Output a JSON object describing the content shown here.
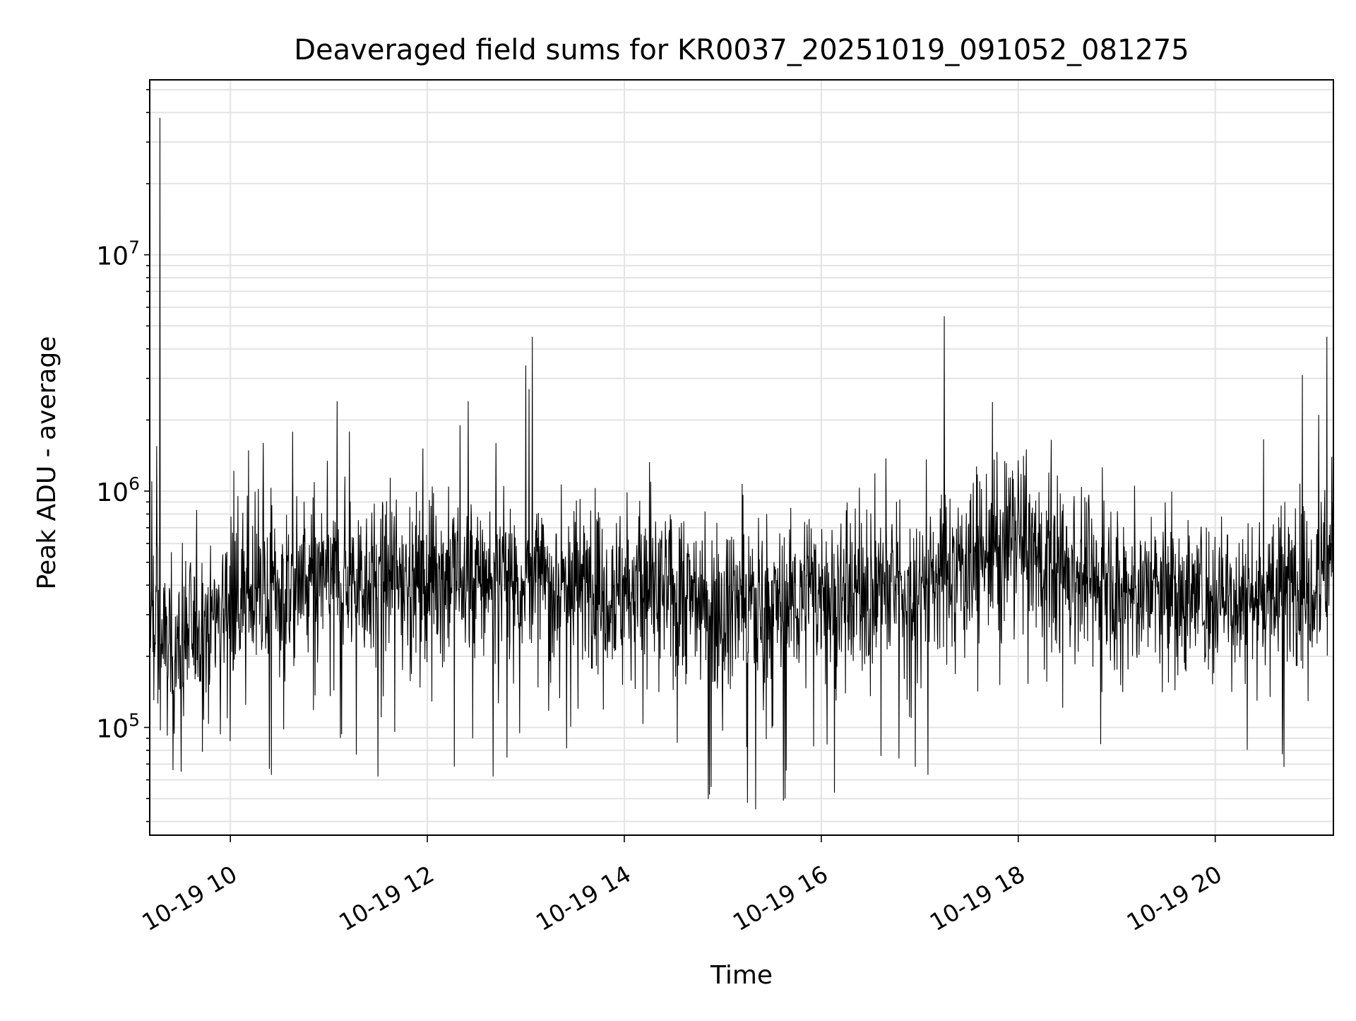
{
  "chart_data": {
    "type": "line",
    "title": "Deaveraged field sums for KR0037_20251019_091052_081275",
    "xlabel": "Time",
    "ylabel": "Peak ADU - average",
    "y_scale": "log",
    "ylim": [
      35000,
      55000000
    ],
    "xlim": [
      "2025-10-19 09:10:52",
      "2025-10-19 21:12:00"
    ],
    "grid": true,
    "legend": "none",
    "x_ticks": [
      {
        "value": "2025-10-19 10:00",
        "label": "10-19 10"
      },
      {
        "value": "2025-10-19 12:00",
        "label": "10-19 12"
      },
      {
        "value": "2025-10-19 14:00",
        "label": "10-19 14"
      },
      {
        "value": "2025-10-19 16:00",
        "label": "10-19 16"
      },
      {
        "value": "2025-10-19 18:00",
        "label": "10-19 18"
      },
      {
        "value": "2025-10-19 20:00",
        "label": "10-19 20"
      }
    ],
    "y_ticks": [
      {
        "value": 100000,
        "base": "10",
        "exp": "5"
      },
      {
        "value": 1000000,
        "base": "10",
        "exp": "6"
      },
      {
        "value": 10000000,
        "base": "10",
        "exp": "7"
      }
    ],
    "series": [
      {
        "color": "#000000",
        "baseline_points": [
          [
            "2025-10-19 09:10:52",
            250000
          ],
          [
            "2025-10-19 09:20",
            220000
          ],
          [
            "2025-10-19 09:30",
            230000
          ],
          [
            "2025-10-19 09:45",
            280000
          ],
          [
            "2025-10-19 10:00",
            360000
          ],
          [
            "2025-10-19 10:30",
            380000
          ],
          [
            "2025-10-19 11:00",
            430000
          ],
          [
            "2025-10-19 12:00",
            430000
          ],
          [
            "2025-10-19 13:00",
            420000
          ],
          [
            "2025-10-19 14:00",
            390000
          ],
          [
            "2025-10-19 15:00",
            340000
          ],
          [
            "2025-10-19 15:30",
            330000
          ],
          [
            "2025-10-19 16:00",
            370000
          ],
          [
            "2025-10-19 17:00",
            400000
          ],
          [
            "2025-10-19 17:30",
            520000
          ],
          [
            "2025-10-19 18:00",
            580000
          ],
          [
            "2025-10-19 18:30",
            460000
          ],
          [
            "2025-10-19 19:00",
            380000
          ],
          [
            "2025-10-19 20:00",
            360000
          ],
          [
            "2025-10-19 20:30",
            360000
          ],
          [
            "2025-10-19 21:00",
            440000
          ],
          [
            "2025-10-19 21:12:00",
            560000
          ]
        ],
        "spikes": [
          [
            "2025-10-19 09:12",
            1100000
          ],
          [
            "2025-10-19 09:15",
            1550000
          ],
          [
            "2025-10-19 09:17",
            38000000
          ],
          [
            "2025-10-19 10:20",
            1600000
          ],
          [
            "2025-10-19 11:05",
            2400000
          ],
          [
            "2025-10-19 12:20",
            1900000
          ],
          [
            "2025-10-19 12:25",
            2400000
          ],
          [
            "2025-10-19 13:00",
            3400000
          ],
          [
            "2025-10-19 13:02",
            2700000
          ],
          [
            "2025-10-19 13:04",
            4500000
          ],
          [
            "2025-10-19 17:15",
            5500000
          ],
          [
            "2025-10-19 18:00",
            1350000
          ],
          [
            "2025-10-19 18:05",
            1500000
          ],
          [
            "2025-10-19 20:53",
            3100000
          ],
          [
            "2025-10-19 21:03",
            2100000
          ],
          [
            "2025-10-19 21:08",
            4500000
          ],
          [
            "2025-10-19 12:40",
            62000
          ],
          [
            "2025-10-19 14:52",
            52000
          ],
          [
            "2025-10-19 14:53",
            56000
          ],
          [
            "2025-10-19 15:15",
            48000
          ],
          [
            "2025-10-19 15:20",
            45000
          ],
          [
            "2025-10-19 15:37",
            49000
          ],
          [
            "2025-10-19 15:38",
            50000
          ],
          [
            "2025-10-19 16:08",
            53000
          ],
          [
            "2025-10-19 10:25",
            63000
          ],
          [
            "2025-10-19 11:30",
            62000
          ],
          [
            "2025-10-19 17:05",
            63000
          ],
          [
            "2025-10-19 09:25",
            66000
          ],
          [
            "2025-10-19 09:30",
            65000
          ],
          [
            "2025-10-19 20:42",
            68000
          ],
          [
            "2025-10-19 20:41",
            77000
          ]
        ]
      }
    ]
  }
}
